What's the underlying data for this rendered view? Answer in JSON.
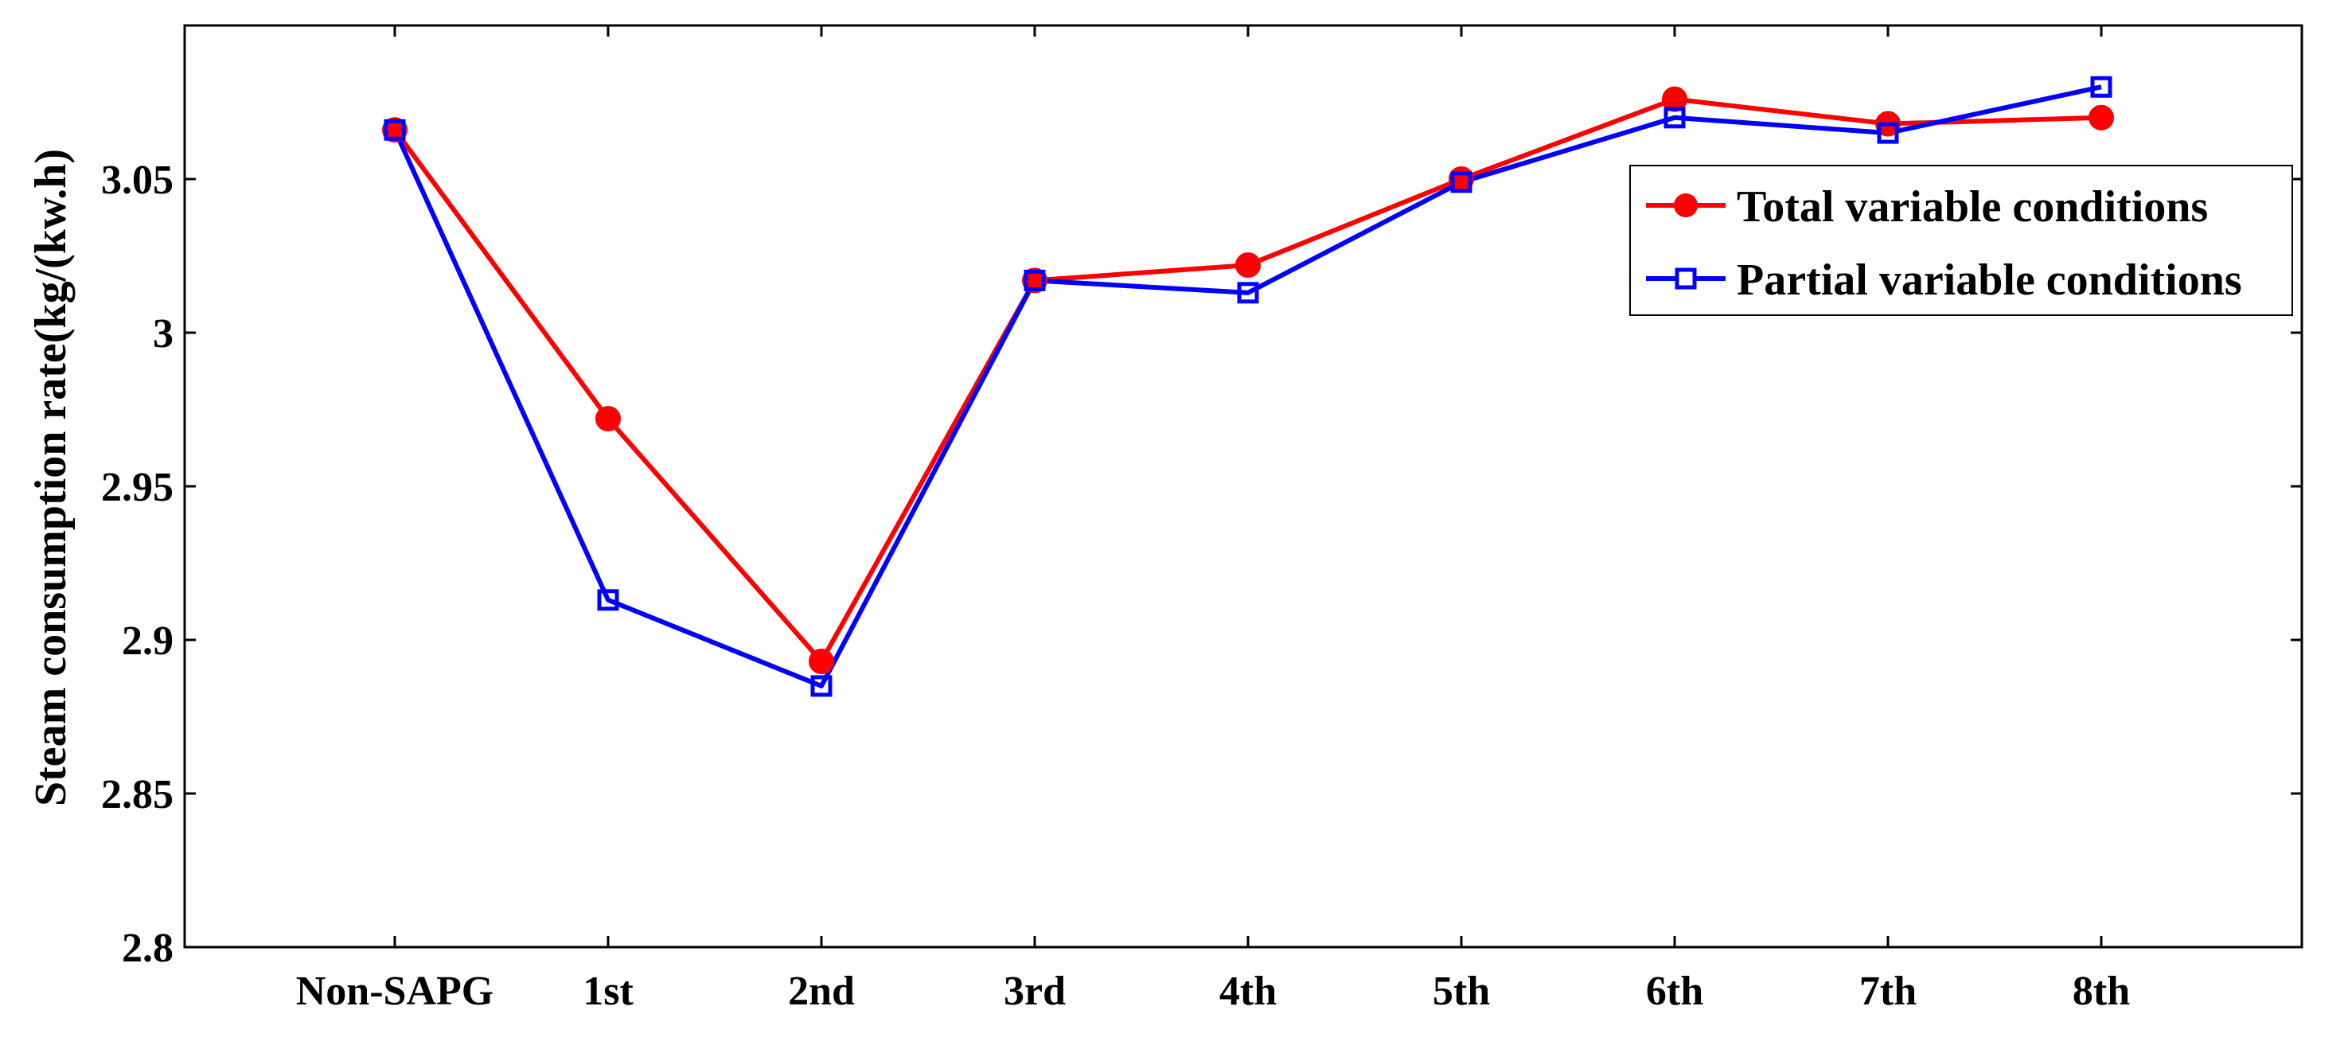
{
  "chart_data": {
    "type": "line",
    "title": "",
    "xlabel": "",
    "ylabel": "Steam consumption rate(kg/(kw.h)",
    "categories": [
      "Non-SAPG",
      "1st",
      "2nd",
      "3rd",
      "4th",
      "5th",
      "6th",
      "7th",
      "8th"
    ],
    "ylim": [
      2.8,
      3.1
    ],
    "yticks": [
      2.8,
      2.85,
      2.9,
      2.95,
      3,
      3.05
    ],
    "ytick_labels": [
      "2.8",
      "2.85",
      "2.9",
      "2.95",
      "3",
      "3.05"
    ],
    "grid": false,
    "legend_position": "top-right",
    "series": [
      {
        "name": "Total variable conditions",
        "color": "#ff0000",
        "marker": "filled-circle",
        "values": [
          3.066,
          2.972,
          2.893,
          3.017,
          3.022,
          3.05,
          3.076,
          3.068,
          3.07
        ]
      },
      {
        "name": "Partial variable conditions",
        "color": "#0000ff",
        "marker": "open-square",
        "values": [
          3.066,
          2.913,
          2.885,
          3.017,
          3.013,
          3.049,
          3.07,
          3.065,
          3.08
        ]
      }
    ]
  }
}
